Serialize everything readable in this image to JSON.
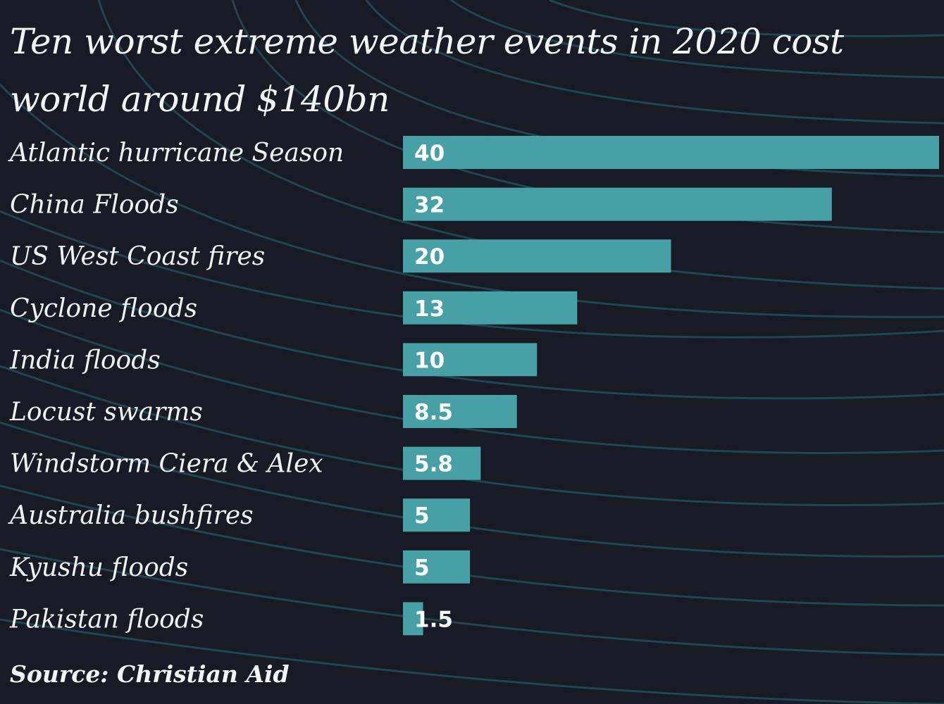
{
  "chart_data": {
    "type": "bar",
    "orientation": "horizontal",
    "title": "Ten worst extreme weather events in 2020 cost world around $140bn",
    "categories": [
      "Atlantic hurricane Season",
      "China Floods",
      "US West Coast fires",
      "Cyclone floods",
      "India floods",
      "Locust swarms",
      "Windstorm Ciera & Alex",
      "Australia bushfires",
      "Kyushu floods",
      "Pakistan floods"
    ],
    "values": [
      40,
      32,
      20,
      13,
      10,
      8.5,
      5.8,
      5,
      5,
      1.5
    ],
    "value_labels": [
      "40",
      "32",
      "20",
      "13",
      "10",
      "8.5",
      "5.8",
      "5",
      "5",
      "1.5"
    ],
    "source": "Source: Christian Aid",
    "colors": {
      "background": "#181b25",
      "bar": "#46a0a6",
      "text": "#f2f2f2",
      "contour": "#1f4a55"
    }
  }
}
